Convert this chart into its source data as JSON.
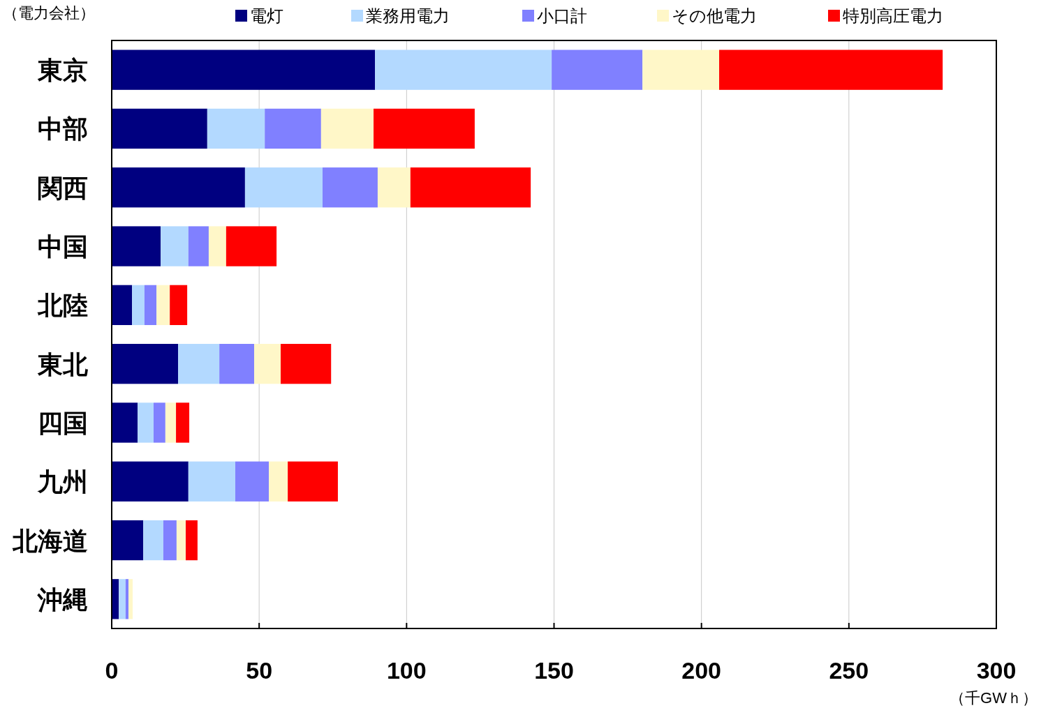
{
  "chart_data": {
    "type": "bar",
    "orientation": "horizontal",
    "stacked": true,
    "categories": [
      "東京",
      "中部",
      "関西",
      "中国",
      "北陸",
      "東北",
      "四国",
      "九州",
      "北海道",
      "沖縄"
    ],
    "series": [
      {
        "name": "電灯",
        "color": "#000080",
        "values": [
          89.3,
          32.4,
          45.2,
          16.6,
          6.9,
          22.5,
          8.8,
          26.0,
          10.7,
          2.4
        ]
      },
      {
        "name": "業務用電力",
        "color": "#b3d9ff",
        "values": [
          59.9,
          19.5,
          26.3,
          9.4,
          4.2,
          14.0,
          5.4,
          15.9,
          6.8,
          2.3
        ]
      },
      {
        "name": "小口計",
        "color": "#8080ff",
        "values": [
          30.8,
          19.1,
          18.7,
          6.9,
          4.1,
          11.8,
          4.0,
          11.4,
          4.5,
          1.0
        ]
      },
      {
        "name": "その他電力",
        "color": "#fff7c8",
        "values": [
          26.0,
          17.8,
          11.1,
          5.9,
          4.5,
          9.0,
          3.6,
          6.4,
          3.1,
          1.4
        ]
      },
      {
        "name": "特別高圧電力",
        "color": "#ff0000",
        "values": [
          75.8,
          34.3,
          40.8,
          17.1,
          5.9,
          17.1,
          4.5,
          17.0,
          4.0,
          0
        ]
      }
    ],
    "xlim": [
      0,
      300
    ],
    "xticks": [
      0,
      50,
      100,
      150,
      200,
      250,
      300
    ],
    "grid": "x",
    "legend": "top",
    "xlabel": "（千GWｈ）",
    "ylabel": "（電力会社）"
  }
}
